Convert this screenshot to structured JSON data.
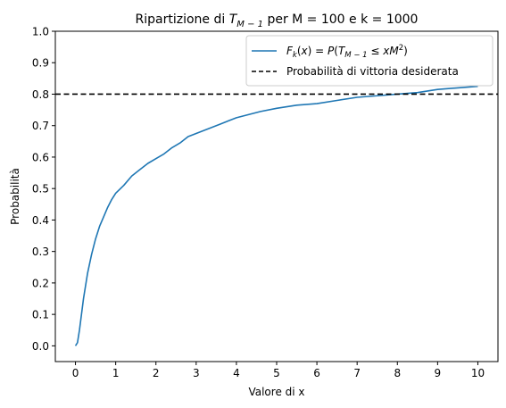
{
  "chart_data": {
    "type": "line",
    "title": {
      "prefix": "Ripartizione di ",
      "var": "T",
      "var_sub": "M − 1",
      "suffix": " per M = 100 e k = 1000"
    },
    "xlabel": "Valore di x",
    "ylabel": "Probabilità",
    "xlim": [
      -0.5,
      10.5
    ],
    "ylim": [
      -0.05,
      1.0
    ],
    "x_ticks": [
      0,
      1,
      2,
      3,
      4,
      5,
      6,
      7,
      8,
      9,
      10
    ],
    "y_ticks": [
      0.0,
      0.1,
      0.2,
      0.3,
      0.4,
      0.5,
      0.6,
      0.7,
      0.8,
      0.9,
      1.0
    ],
    "x_tick_labels": [
      "0",
      "1",
      "2",
      "3",
      "4",
      "5",
      "6",
      "7",
      "8",
      "9",
      "10"
    ],
    "y_tick_labels": [
      "0.0",
      "0.1",
      "0.2",
      "0.3",
      "0.4",
      "0.5",
      "0.6",
      "0.7",
      "0.8",
      "0.9",
      "1.0"
    ],
    "grid": false,
    "legend_position": "top-right",
    "series": [
      {
        "name": "F_k(x) = P(T_{M−1} ≤ xM²)",
        "color": "#1f77b4",
        "style": "solid",
        "x": [
          0,
          0.05,
          0.1,
          0.15,
          0.2,
          0.25,
          0.3,
          0.4,
          0.5,
          0.6,
          0.7,
          0.8,
          0.9,
          1.0,
          1.2,
          1.4,
          1.6,
          1.8,
          2.0,
          2.2,
          2.4,
          2.6,
          2.8,
          3.0,
          3.2,
          3.4,
          3.6,
          3.8,
          4.0,
          4.3,
          4.6,
          5.0,
          5.5,
          6.0,
          6.5,
          7.0,
          7.5,
          8.0,
          8.5,
          9.0,
          9.5,
          10.0
        ],
        "y": [
          0.0,
          0.01,
          0.05,
          0.1,
          0.15,
          0.19,
          0.23,
          0.29,
          0.34,
          0.38,
          0.41,
          0.44,
          0.465,
          0.485,
          0.51,
          0.54,
          0.56,
          0.58,
          0.595,
          0.61,
          0.63,
          0.645,
          0.665,
          0.675,
          0.685,
          0.695,
          0.705,
          0.715,
          0.725,
          0.735,
          0.745,
          0.755,
          0.765,
          0.77,
          0.78,
          0.79,
          0.795,
          0.8,
          0.805,
          0.815,
          0.82,
          0.825
        ]
      },
      {
        "name": "Probabilità di vittoria desiderata",
        "color": "#000000",
        "style": "dashed",
        "y_constant": 0.8
      }
    ]
  }
}
